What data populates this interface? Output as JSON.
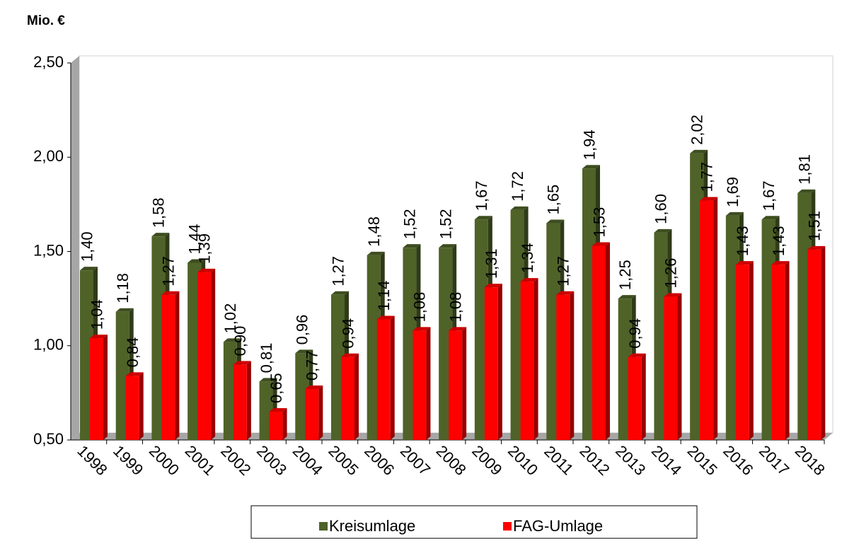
{
  "chart_data": {
    "type": "bar",
    "y_axis_label": "Mio. €",
    "categories": [
      "1998",
      "1999",
      "2000",
      "2001",
      "2002",
      "2003",
      "2004",
      "2005",
      "2006",
      "2007",
      "2008",
      "2009",
      "2010",
      "2011",
      "2012",
      "2013",
      "2014",
      "2015",
      "2016",
      "2017",
      "2018"
    ],
    "series": [
      {
        "name": "Kreisumlage",
        "color": "#4f6228",
        "values": [
          1.4,
          1.18,
          1.58,
          1.44,
          1.02,
          0.81,
          0.96,
          1.27,
          1.48,
          1.52,
          1.52,
          1.67,
          1.72,
          1.65,
          1.94,
          1.25,
          1.6,
          2.02,
          1.69,
          1.67,
          1.81
        ],
        "value_labels": [
          "1,40",
          "1,18",
          "1,58",
          "1,44",
          "1,02",
          "0,81",
          "0,96",
          "1,27",
          "1,48",
          "1,52",
          "1,52",
          "1,67",
          "1,72",
          "1,65",
          "1,94",
          "1,25",
          "1,60",
          "2,02",
          "1,69",
          "1,67",
          "1,81"
        ]
      },
      {
        "name": "FAG-Umlage",
        "color": "#ff0000",
        "values": [
          1.04,
          0.84,
          1.27,
          1.39,
          0.9,
          0.65,
          0.77,
          0.94,
          1.14,
          1.08,
          1.08,
          1.31,
          1.34,
          1.27,
          1.53,
          0.94,
          1.26,
          1.77,
          1.43,
          1.43,
          1.51
        ],
        "value_labels": [
          "1,04",
          "0,84",
          "1,27",
          "1,39",
          "0,90",
          "0,65",
          "0,77",
          "0,94",
          "1,14",
          "1,08",
          "1,08",
          "1,31",
          "1,34",
          "1,27",
          "1,53",
          "0,94",
          "1,26",
          "1,77",
          "1,43",
          "1,43",
          "1,51"
        ]
      }
    ],
    "ylim": [
      0.5,
      2.5
    ],
    "yticks": [
      {
        "value": 0.5,
        "label": "0,50"
      },
      {
        "value": 1,
        "label": "1,00"
      },
      {
        "value": 1.5,
        "label": "1,50"
      },
      {
        "value": 2,
        "label": "2,00"
      },
      {
        "value": 2.5,
        "label": "2,50"
      }
    ],
    "legend": "bottom"
  }
}
